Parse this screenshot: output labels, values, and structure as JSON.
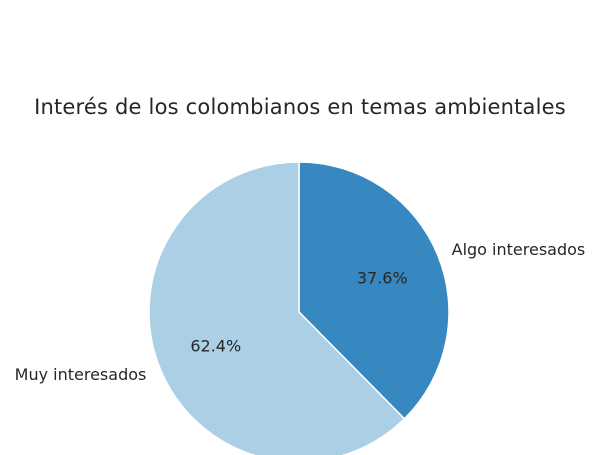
{
  "chart_data": {
    "type": "pie",
    "title": "Interés de los colombianos en temas ambientales",
    "categories": [
      "Algo interesados",
      "Muy interesados"
    ],
    "values": [
      37.6,
      62.4
    ],
    "value_labels": [
      "37.6%",
      "62.4%"
    ],
    "colors": [
      "#3787c0",
      "#abcfe5"
    ],
    "start_angle": "top (12 o'clock), slices drawn clockwise",
    "legend": "none"
  }
}
